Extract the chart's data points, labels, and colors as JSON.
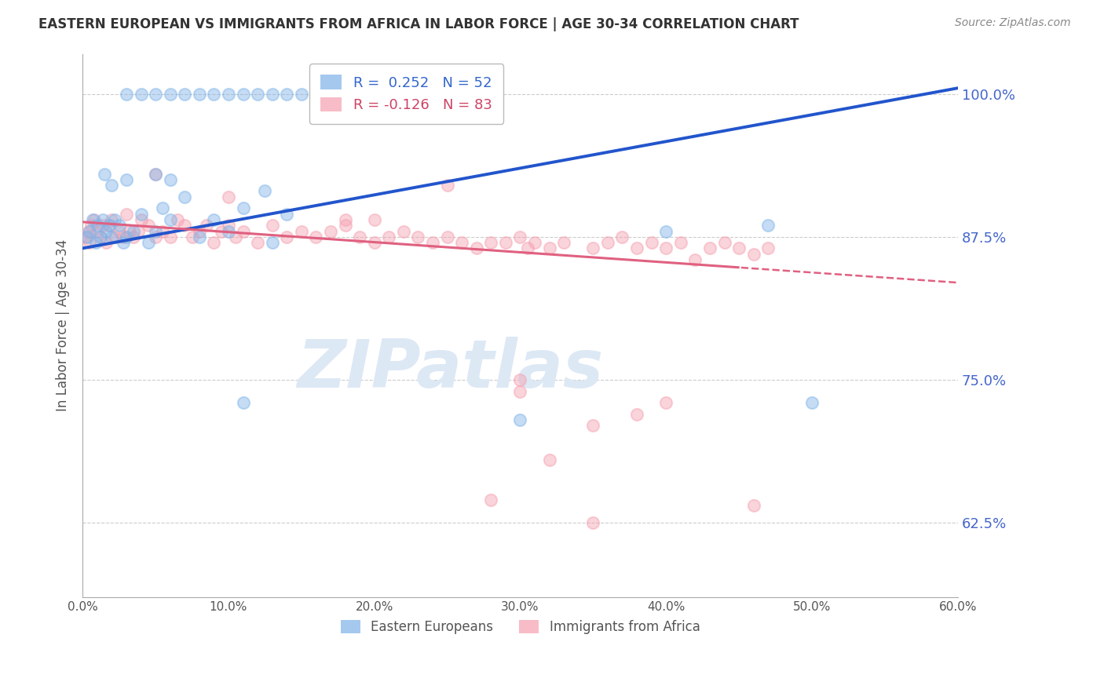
{
  "title": "EASTERN EUROPEAN VS IMMIGRANTS FROM AFRICA IN LABOR FORCE | AGE 30-34 CORRELATION CHART",
  "source": "Source: ZipAtlas.com",
  "ylabel": "In Labor Force | Age 30-34",
  "x_tick_labels": [
    "0.0%",
    "10.0%",
    "20.0%",
    "30.0%",
    "40.0%",
    "50.0%",
    "60.0%"
  ],
  "x_tick_values": [
    0.0,
    10.0,
    20.0,
    30.0,
    40.0,
    50.0,
    60.0
  ],
  "y_tick_labels": [
    "62.5%",
    "75.0%",
    "87.5%",
    "100.0%"
  ],
  "y_tick_values": [
    62.5,
    75.0,
    87.5,
    100.0
  ],
  "xlim": [
    0.0,
    60.0
  ],
  "ylim": [
    56.0,
    103.5
  ],
  "blue_color": "#7fb3e8",
  "pink_color": "#f4a0b0",
  "blue_line_color": "#2255cc",
  "pink_line_color": "#e06080",
  "blue_legend_label": "R =  0.252   N = 52",
  "pink_legend_label": "R = -0.126   N = 83",
  "legend_text_blue": "#3366cc",
  "legend_text_pink": "#cc4466",
  "watermark": "ZIPatlas",
  "watermark_color": "#dde8f5",
  "background_color": "#ffffff",
  "blue_x": [
    0.3,
    0.5,
    0.7,
    0.9,
    1.0,
    1.2,
    1.4,
    1.6,
    1.8,
    2.0,
    2.2,
    2.5,
    2.8,
    3.0,
    3.5,
    4.0,
    4.5,
    5.0,
    5.5,
    6.0,
    7.0,
    8.0,
    9.0,
    10.0,
    11.0,
    12.5,
    13.0,
    14.0,
    3.0,
    4.0,
    5.0,
    6.0,
    7.0,
    8.0,
    9.0,
    10.0,
    11.0,
    12.0,
    13.0,
    14.0,
    15.0,
    16.0,
    11.0,
    30.0,
    40.0,
    47.0,
    50.0,
    1.5,
    2.0,
    3.0,
    5.0,
    6.0
  ],
  "blue_y": [
    87.5,
    88.0,
    89.0,
    87.0,
    88.5,
    87.5,
    89.0,
    88.0,
    88.5,
    87.5,
    89.0,
    88.5,
    87.0,
    87.5,
    88.0,
    89.5,
    87.0,
    88.0,
    90.0,
    89.0,
    91.0,
    87.5,
    89.0,
    88.0,
    90.0,
    91.5,
    87.0,
    89.5,
    100.0,
    100.0,
    100.0,
    100.0,
    100.0,
    100.0,
    100.0,
    100.0,
    100.0,
    100.0,
    100.0,
    100.0,
    100.0,
    100.0,
    73.0,
    71.5,
    88.0,
    88.5,
    73.0,
    93.0,
    92.0,
    92.5,
    93.0,
    92.5
  ],
  "pink_x": [
    0.2,
    0.4,
    0.5,
    0.6,
    0.8,
    1.0,
    1.2,
    1.4,
    1.6,
    1.8,
    2.0,
    2.2,
    2.5,
    2.8,
    3.0,
    3.2,
    3.5,
    3.8,
    4.0,
    4.5,
    5.0,
    5.5,
    6.0,
    6.5,
    7.0,
    7.5,
    8.0,
    8.5,
    9.0,
    9.5,
    10.0,
    10.5,
    11.0,
    12.0,
    13.0,
    14.0,
    15.0,
    16.0,
    17.0,
    18.0,
    19.0,
    20.0,
    21.0,
    22.0,
    23.0,
    24.0,
    25.0,
    26.0,
    27.0,
    28.0,
    29.0,
    30.0,
    30.5,
    31.0,
    32.0,
    33.0,
    35.0,
    36.0,
    37.0,
    38.0,
    39.0,
    40.0,
    41.0,
    42.0,
    43.0,
    44.0,
    45.0,
    46.0,
    47.0,
    28.0,
    35.0,
    30.0,
    40.0,
    46.0,
    25.0,
    32.0,
    35.0,
    38.0,
    20.0,
    30.0,
    5.0,
    10.0,
    18.0
  ],
  "pink_y": [
    87.5,
    88.0,
    87.0,
    88.5,
    89.0,
    88.0,
    87.5,
    88.5,
    87.0,
    88.5,
    89.0,
    87.5,
    88.0,
    87.5,
    89.5,
    88.0,
    87.5,
    88.0,
    89.0,
    88.5,
    87.5,
    88.0,
    87.5,
    89.0,
    88.5,
    87.5,
    88.0,
    88.5,
    87.0,
    88.0,
    88.5,
    87.5,
    88.0,
    87.0,
    88.5,
    87.5,
    88.0,
    87.5,
    88.0,
    88.5,
    87.5,
    87.0,
    87.5,
    88.0,
    87.5,
    87.0,
    87.5,
    87.0,
    86.5,
    87.0,
    87.0,
    87.5,
    86.5,
    87.0,
    86.5,
    87.0,
    86.5,
    87.0,
    87.5,
    86.5,
    87.0,
    86.5,
    87.0,
    85.5,
    86.5,
    87.0,
    86.5,
    86.0,
    86.5,
    64.5,
    62.5,
    74.0,
    73.0,
    64.0,
    92.0,
    68.0,
    71.0,
    72.0,
    89.0,
    75.0,
    93.0,
    91.0,
    89.0
  ],
  "blue_line_x0": 0.0,
  "blue_line_y0": 86.5,
  "blue_line_x1": 60.0,
  "blue_line_y1": 100.5,
  "pink_line_x0": 0.0,
  "pink_line_y0": 88.8,
  "pink_line_x1": 60.0,
  "pink_line_y1": 83.5,
  "pink_solid_end": 45.0,
  "marker_size": 120,
  "marker_alpha": 0.45
}
